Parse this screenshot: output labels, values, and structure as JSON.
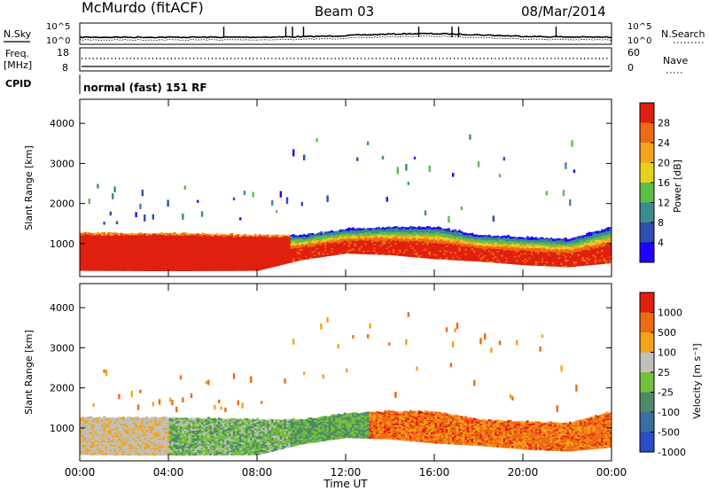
{
  "header": {
    "station": "McMurdo (fitACF)",
    "beam": "Beam 03",
    "date": "08/Mar/2014"
  },
  "top_panel": {
    "left_label": "N.Sky",
    "left_ticks": [
      "10^5",
      "10^0"
    ],
    "right_label": "N.Search",
    "right_ticks": [
      "10^5",
      "10^0"
    ],
    "freq_label_1": "Freq.",
    "freq_label_2": "[MHz]",
    "freq_ticks": [
      "18",
      "8"
    ],
    "nave_label": "Nave",
    "nave_ticks": [
      "60",
      "0"
    ],
    "cpid_label": "CPID",
    "cpid_text": "normal (fast) 151 RF"
  },
  "chart_data": [
    {
      "type": "heatmap",
      "title": "",
      "xlabel": "Time UT",
      "ylabel": "Slant Range [km]",
      "xlim": [
        "00:00",
        "24:00"
      ],
      "ylim": [
        180,
        4600
      ],
      "x_ticks": [
        "00:00",
        "04:00",
        "08:00",
        "12:00",
        "16:00",
        "20:00",
        "00:00"
      ],
      "y_ticks": [
        1000,
        2000,
        3000,
        4000
      ],
      "colorbar": {
        "label": "Power [dB]",
        "ticks": [
          "4",
          "8",
          "12",
          "16",
          "20",
          "24",
          "28"
        ],
        "colors": [
          "#2200ff",
          "#2f4fb0",
          "#3d8a8f",
          "#5cbf4a",
          "#e6d21e",
          "#f5a21c",
          "#ee6a14",
          "#e0200f"
        ]
      },
      "scatter_band_km": [
        {
          "t": 0,
          "lower": 330,
          "upper": 1250
        },
        {
          "t": 4,
          "lower": 320,
          "upper": 1250
        },
        {
          "t": 8,
          "lower": 330,
          "upper": 1200
        },
        {
          "t": 10,
          "lower": 600,
          "upper": 1200
        },
        {
          "t": 12,
          "lower": 760,
          "upper": 1350
        },
        {
          "t": 14,
          "lower": 720,
          "upper": 1400
        },
        {
          "t": 16,
          "lower": 620,
          "upper": 1400
        },
        {
          "t": 18,
          "lower": 560,
          "upper": 1200
        },
        {
          "t": 20,
          "lower": 470,
          "upper": 1150
        },
        {
          "t": 22,
          "lower": 420,
          "upper": 1100
        },
        {
          "t": 24,
          "lower": 520,
          "upper": 1400
        }
      ]
    },
    {
      "type": "heatmap",
      "title": "",
      "xlabel": "Time UT",
      "ylabel": "Slant Range [km]",
      "xlim": [
        "00:00",
        "24:00"
      ],
      "ylim": [
        180,
        4600
      ],
      "x_ticks": [
        "00:00",
        "04:00",
        "08:00",
        "12:00",
        "16:00",
        "20:00",
        "00:00"
      ],
      "y_ticks": [
        1000,
        2000,
        3000,
        4000
      ],
      "colorbar": {
        "label": "Velocity [m s⁻¹]",
        "ticks": [
          "1000",
          "500",
          "100",
          "25",
          "-25",
          "-100",
          "-500",
          "-1000"
        ],
        "colors": [
          "#2a4ec8",
          "#3a6ea0",
          "#4f8a66",
          "#72c03e",
          "#c0c0b8",
          "#f5a21c",
          "#ee6a14",
          "#e0200f"
        ]
      }
    }
  ],
  "footer": {
    "xlabel": "Time UT"
  }
}
